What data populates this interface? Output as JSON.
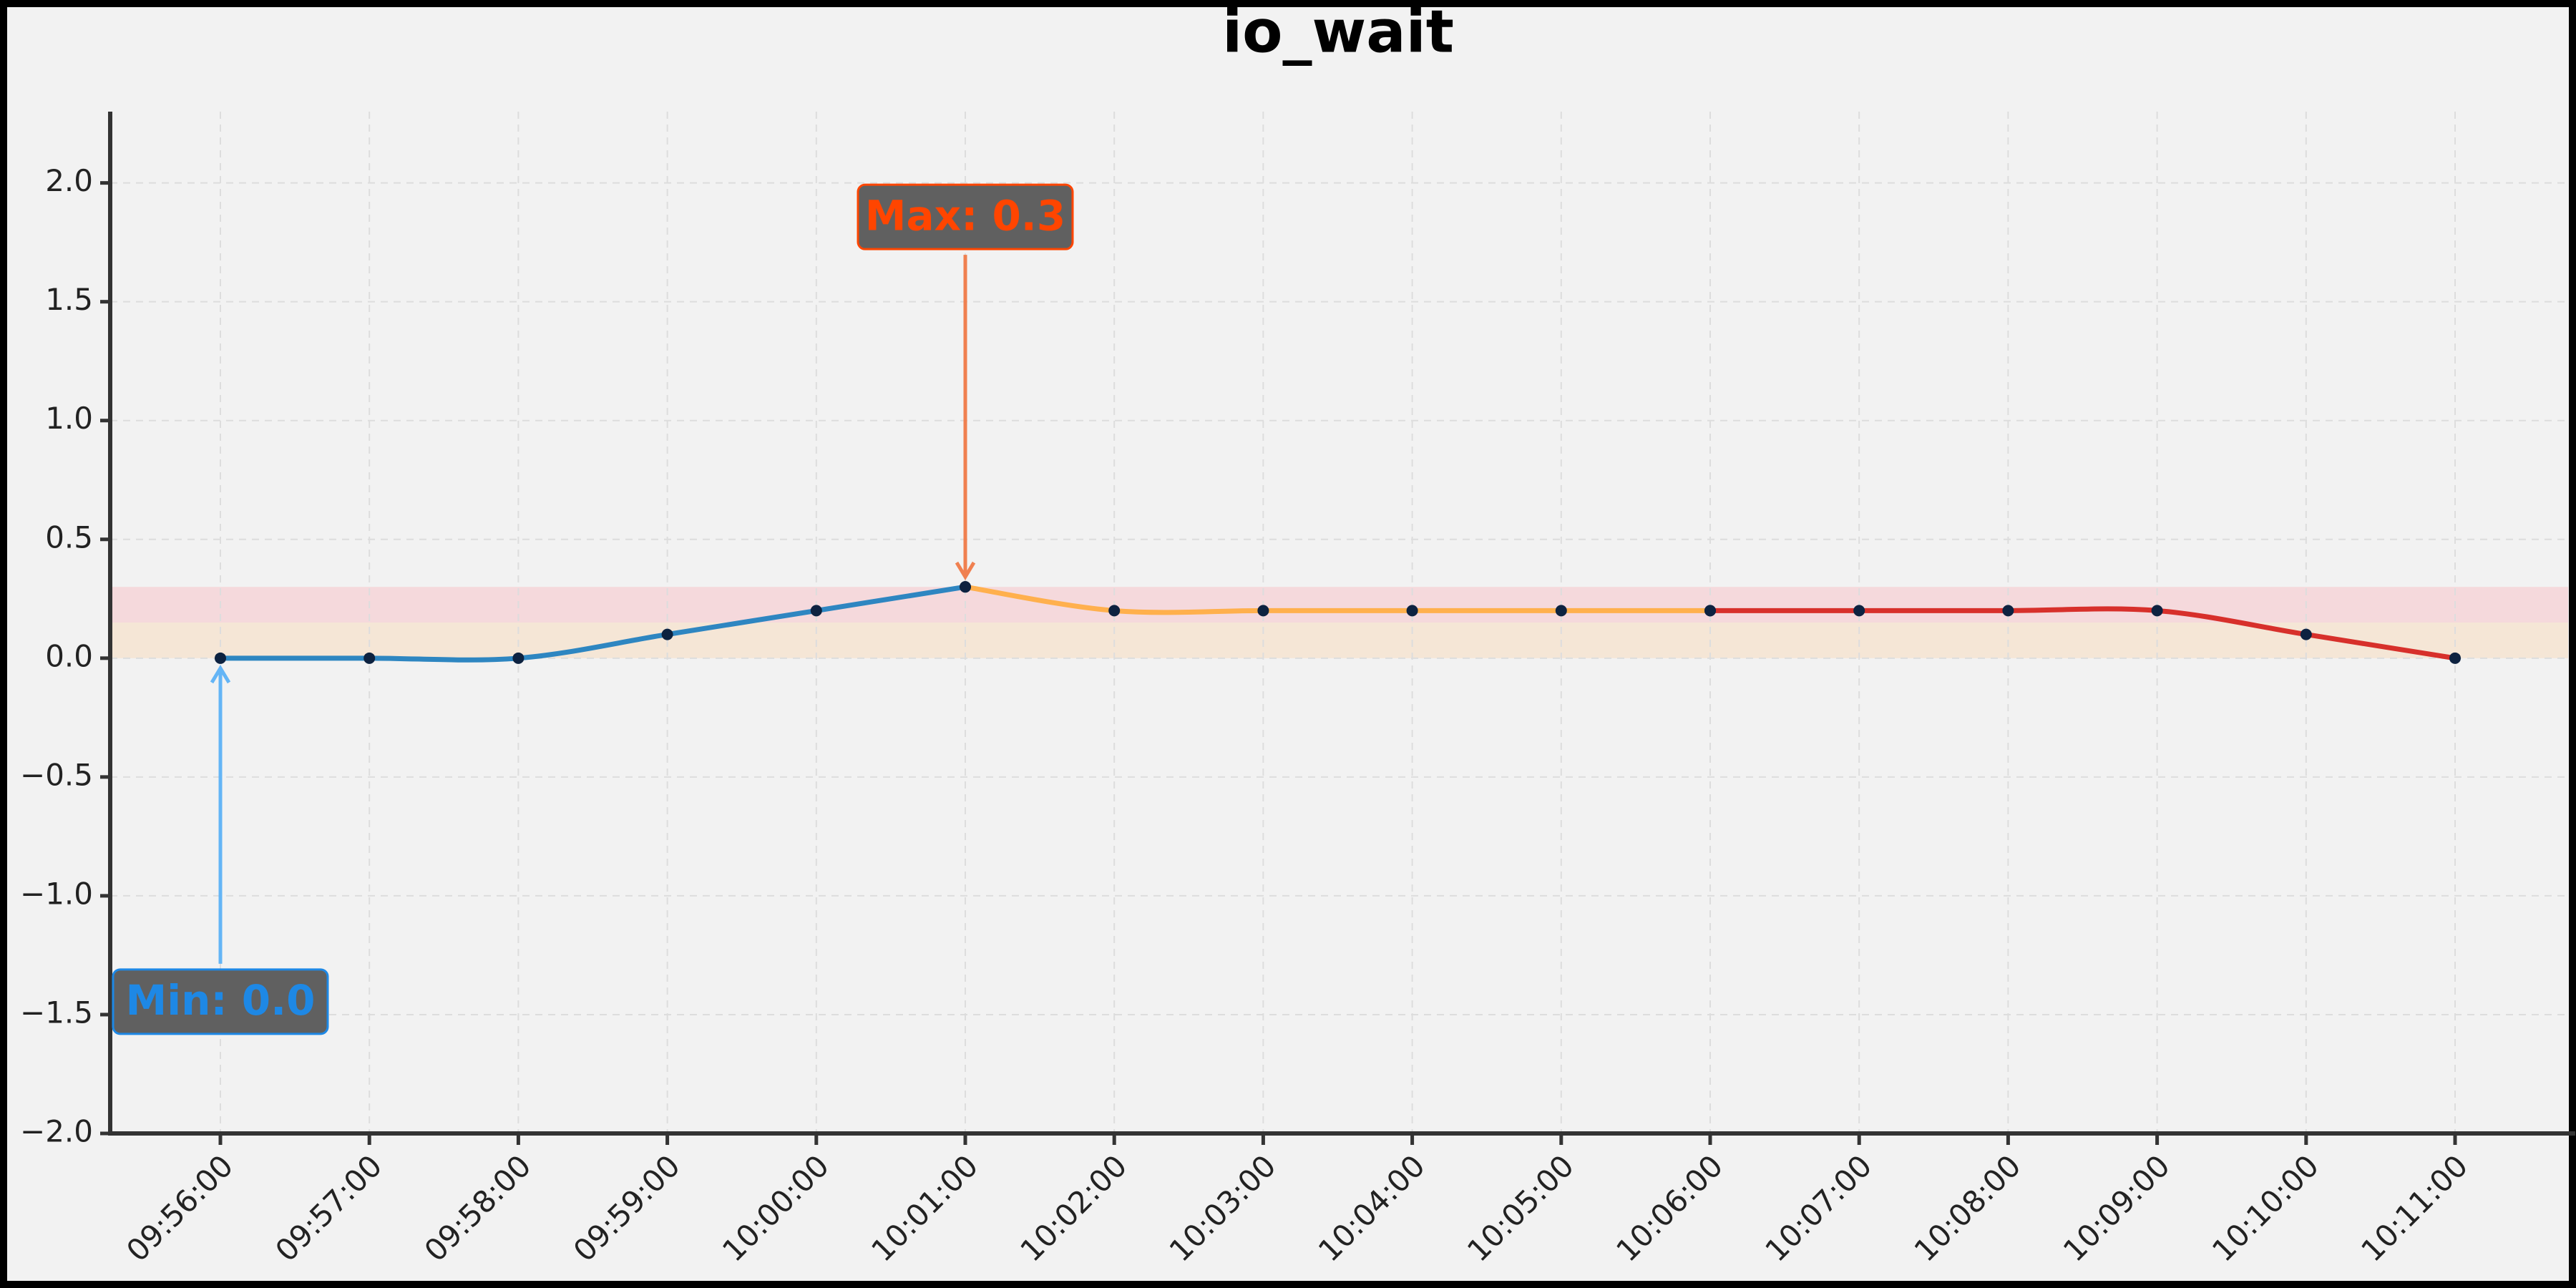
{
  "chart_data": {
    "type": "line",
    "title": "io_wait",
    "categories": [
      "09:56:00",
      "09:57:00",
      "09:58:00",
      "09:59:00",
      "10:00:00",
      "10:01:00",
      "10:02:00",
      "10:03:00",
      "10:04:00",
      "10:05:00",
      "10:06:00",
      "10:07:00",
      "10:08:00",
      "10:09:00",
      "10:10:00",
      "10:11:00"
    ],
    "series": [
      {
        "color": "#2e86c1",
        "values": [
          0.0,
          0.0,
          0.0,
          0.1,
          0.2,
          0.3,
          null,
          null,
          null,
          null,
          null,
          null,
          null,
          null,
          null,
          null
        ]
      },
      {
        "color": "#ffb04d",
        "values": [
          null,
          null,
          null,
          null,
          null,
          0.3,
          0.2,
          0.2,
          0.2,
          0.2,
          0.2,
          null,
          null,
          null,
          null,
          null
        ]
      },
      {
        "color": "#d7302b",
        "values": [
          null,
          null,
          null,
          null,
          null,
          null,
          null,
          null,
          null,
          null,
          0.2,
          0.2,
          0.2,
          0.2,
          0.1,
          0.0
        ]
      }
    ],
    "marker_color": "#0d2240",
    "ylim": [
      -2.0,
      2.3
    ],
    "yticks": [
      {
        "value": -2.0,
        "label": "−2.0"
      },
      {
        "value": -1.5,
        "label": "−1.5"
      },
      {
        "value": -1.0,
        "label": "−1.0"
      },
      {
        "value": -0.5,
        "label": "−0.5"
      },
      {
        "value": 0.0,
        "label": "0.0"
      },
      {
        "value": 0.5,
        "label": "0.5"
      },
      {
        "value": 1.0,
        "label": "1.0"
      },
      {
        "value": 1.5,
        "label": "1.5"
      },
      {
        "value": 2.0,
        "label": "2.0"
      }
    ],
    "grid": true,
    "bands": [
      {
        "from": 0.0,
        "to": 0.15,
        "color": "#f5e6d6"
      },
      {
        "from": 0.15,
        "to": 0.3,
        "color": "#f5d9dc"
      }
    ],
    "annotations": [
      {
        "text": "Max: 0.3",
        "index": 5,
        "value": 0.3,
        "color": "#ff4500",
        "arrow_color": "#f08050"
      },
      {
        "text": "Min: 0.0",
        "index": 0,
        "value": 0.0,
        "color": "#1e88e5",
        "arrow_color": "#64b5f6"
      }
    ]
  }
}
